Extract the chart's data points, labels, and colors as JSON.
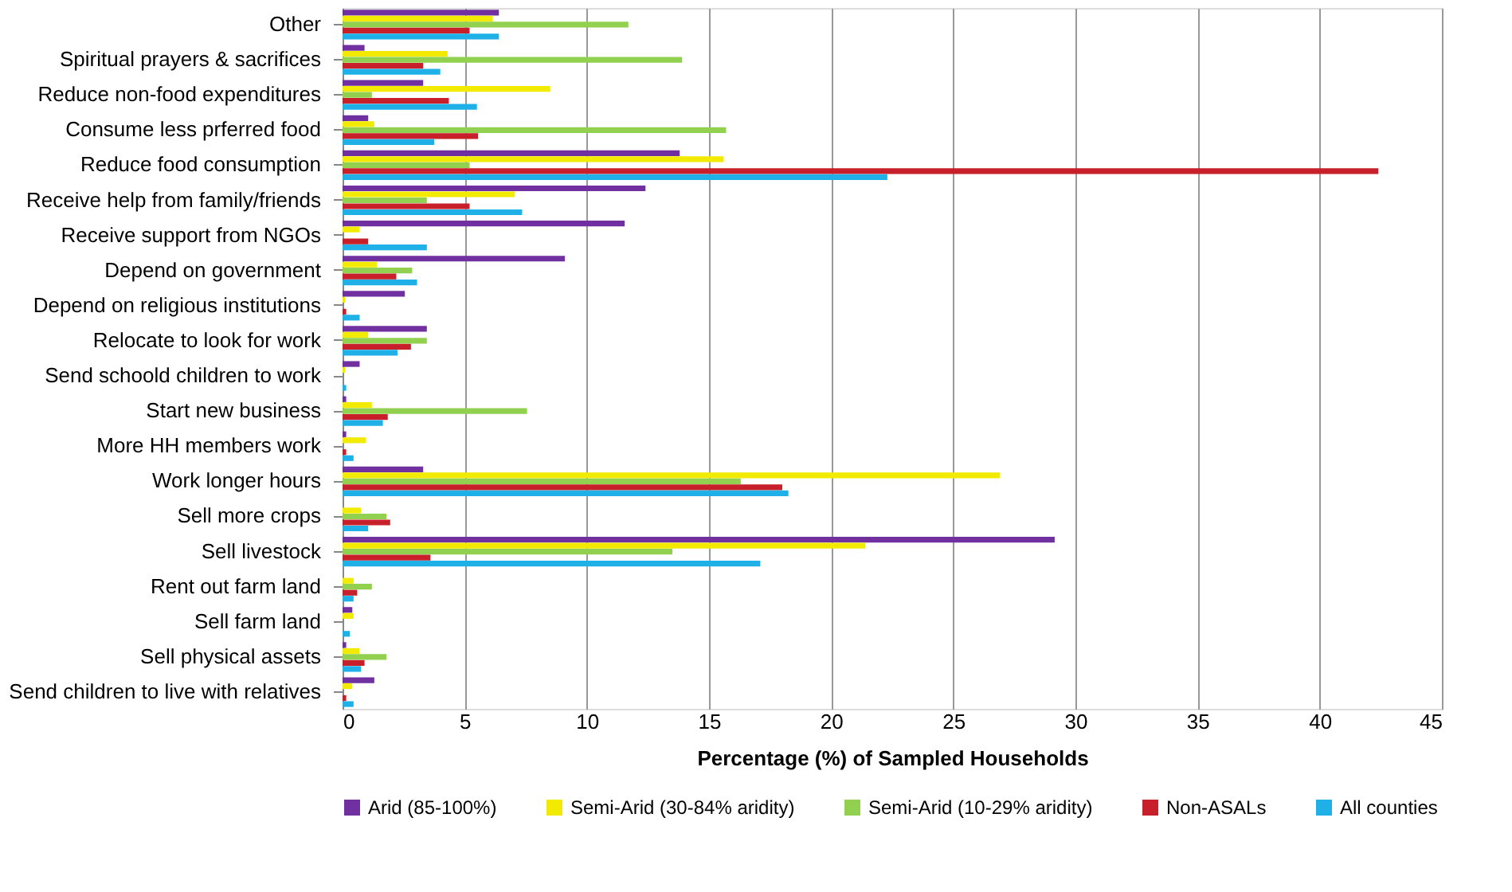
{
  "chart_data": {
    "type": "bar",
    "orientation": "horizontal",
    "xlabel": "Percentage (%) of Sampled Households",
    "categories": [
      "Other",
      "Spiritual prayers & sacrifices",
      "Reduce non-food expenditures",
      "Consume less prferred food",
      "Reduce food consumption",
      "Receive help from family/friends",
      "Receive support from NGOs",
      "Depend on government",
      "Depend on religious institutions",
      "Relocate to look for work",
      "Send schoold children to work",
      "Start new business",
      "More HH members work",
      "Work longer hours",
      "Sell more crops",
      "Sell livestock",
      "Rent out farm land",
      "Sell farm land",
      "Sell physical assets",
      "Send children to live with relatives"
    ],
    "series": [
      {
        "name": "Arid (85-100%)",
        "color": "#7030a0",
        "values": [
          6.4,
          0.9,
          3.3,
          1.05,
          13.8,
          12.4,
          11.55,
          9.1,
          2.55,
          3.45,
          0.7,
          0.15,
          0.15,
          3.3,
          0,
          29.15,
          0,
          0.4,
          0.15,
          1.3
        ]
      },
      {
        "name": "Semi-Arid (30-84% aridity)",
        "color": "#f2ea00",
        "values": [
          6.15,
          4.3,
          8.5,
          1.3,
          15.6,
          7.05,
          0.7,
          1.4,
          0.1,
          1.05,
          0.1,
          1.2,
          0.95,
          26.9,
          0.75,
          21.4,
          0.45,
          0.45,
          0.7,
          0.4
        ]
      },
      {
        "name": "Semi-Arid (10-29% aridity)",
        "color": "#92d050",
        "values": [
          11.7,
          13.9,
          1.2,
          15.7,
          5.2,
          3.45,
          0,
          2.85,
          0,
          3.45,
          0,
          7.55,
          0,
          16.3,
          1.8,
          13.5,
          1.2,
          0,
          1.8,
          0
        ]
      },
      {
        "name": "Non-ASALs",
        "color": "#c8202a",
        "values": [
          5.2,
          3.3,
          4.35,
          5.55,
          42.4,
          5.2,
          1.05,
          2.2,
          0.15,
          2.8,
          0,
          1.85,
          0.15,
          18.0,
          1.95,
          3.6,
          0.6,
          0,
          0.9,
          0.15
        ]
      },
      {
        "name": "All counties",
        "color": "#1fb0e8",
        "values": [
          6.4,
          4.0,
          5.5,
          3.75,
          22.3,
          7.35,
          3.45,
          3.05,
          0.7,
          2.25,
          0.15,
          1.65,
          0.45,
          18.25,
          1.05,
          17.1,
          0.45,
          0.3,
          0.75,
          0.45
        ]
      }
    ],
    "xlim": [
      0,
      45
    ],
    "xticks": [
      0,
      5,
      10,
      15,
      20,
      25,
      30,
      35,
      40,
      45
    ],
    "grid": "x",
    "legend": "bottom"
  }
}
